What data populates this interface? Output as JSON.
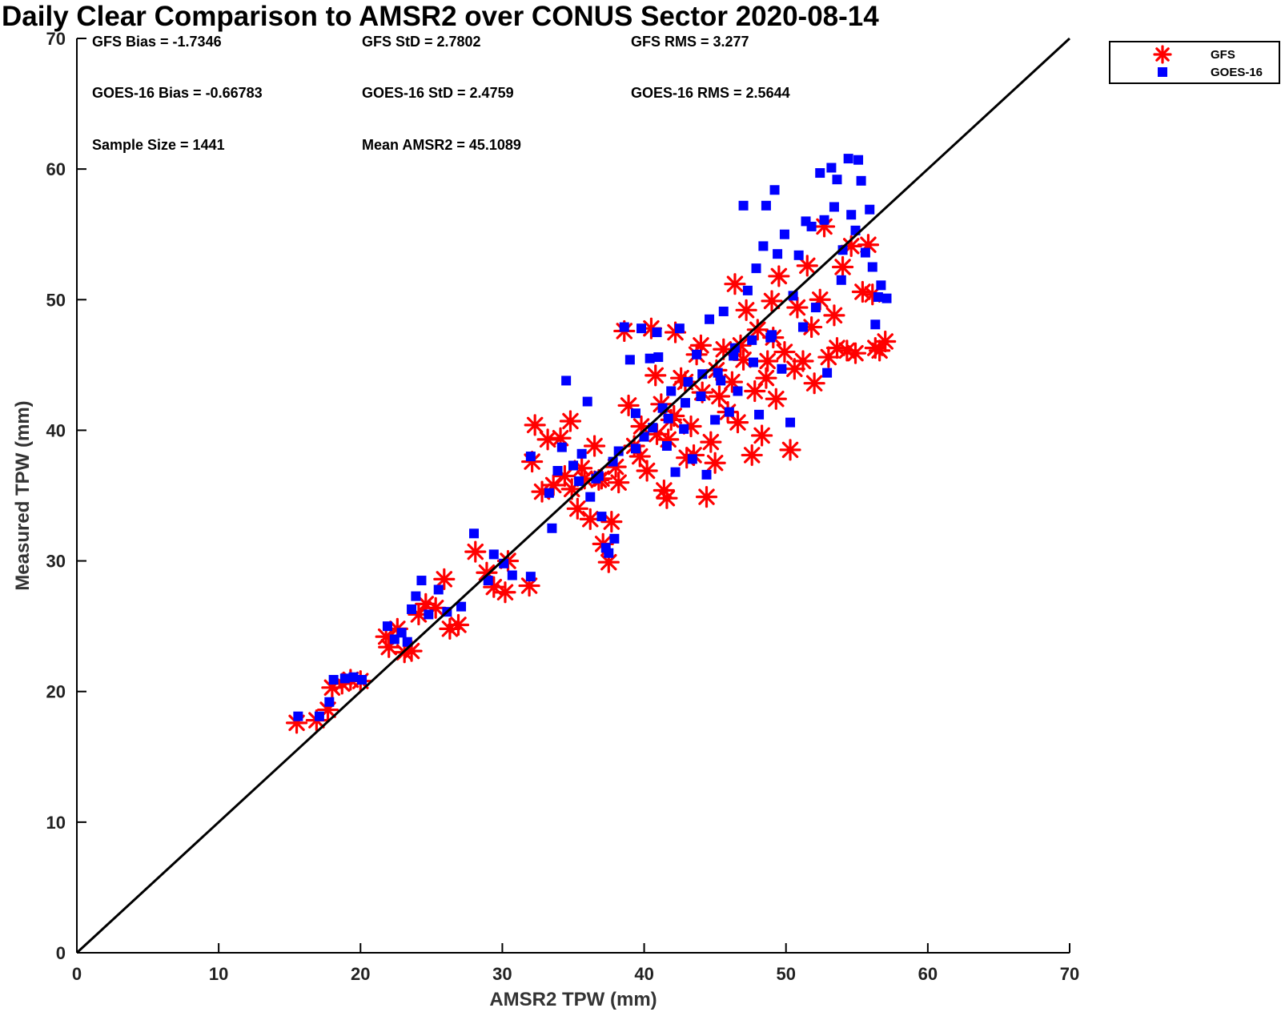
{
  "chart_data": {
    "type": "scatter",
    "title": "Daily Clear Comparison to AMSR2 over CONUS Sector 2020-08-14",
    "xlabel": "AMSR2 TPW (mm)",
    "ylabel": "Measured TPW (mm)",
    "xlim": [
      0,
      70
    ],
    "ylim": [
      0,
      70
    ],
    "xticks": [
      "0",
      "10",
      "20",
      "30",
      "40",
      "50",
      "60",
      "70"
    ],
    "yticks": [
      "0",
      "10",
      "20",
      "30",
      "40",
      "50",
      "60",
      "70"
    ],
    "grid": false,
    "legend_position": "outside-top-right",
    "reference_line": {
      "from": [
        0,
        0
      ],
      "to": [
        70,
        70
      ],
      "color": "#000000"
    },
    "stats": [
      "GFS Bias = -1.7346",
      "GFS StD = 2.7802",
      "GFS RMS = 3.277",
      "GOES-16 Bias = -0.66783",
      "GOES-16 StD = 2.4759",
      "GOES-16 RMS = 2.5644",
      "Sample Size = 1441",
      "Mean AMSR2 = 45.1089"
    ],
    "series": [
      {
        "name": "GFS",
        "marker": "asterisk",
        "color": "#ff0000",
        "points": [
          [
            15.5,
            17.6
          ],
          [
            16.9,
            17.8
          ],
          [
            17.7,
            18.6
          ],
          [
            18.0,
            20.3
          ],
          [
            18.7,
            20.6
          ],
          [
            19.3,
            20.9
          ],
          [
            20.0,
            20.8
          ],
          [
            21.8,
            24.2
          ],
          [
            22.0,
            23.4
          ],
          [
            22.6,
            24.8
          ],
          [
            23.1,
            23.0
          ],
          [
            23.6,
            23.1
          ],
          [
            24.1,
            25.9
          ],
          [
            24.6,
            26.7
          ],
          [
            25.3,
            26.4
          ],
          [
            25.9,
            28.6
          ],
          [
            26.3,
            24.8
          ],
          [
            26.9,
            25.1
          ],
          [
            28.1,
            30.7
          ],
          [
            28.9,
            29.1
          ],
          [
            29.4,
            28.0
          ],
          [
            30.2,
            27.6
          ],
          [
            30.4,
            30.0
          ],
          [
            31.9,
            28.1
          ],
          [
            32.1,
            37.6
          ],
          [
            32.3,
            40.4
          ],
          [
            32.8,
            35.3
          ],
          [
            33.2,
            39.3
          ],
          [
            33.6,
            35.8
          ],
          [
            34.1,
            39.4
          ],
          [
            34.4,
            36.5
          ],
          [
            34.8,
            40.7
          ],
          [
            34.9,
            35.5
          ],
          [
            35.3,
            34.0
          ],
          [
            35.6,
            37.1
          ],
          [
            36.2,
            33.2
          ],
          [
            36.5,
            38.8
          ],
          [
            37.0,
            36.3
          ],
          [
            37.1,
            31.3
          ],
          [
            37.5,
            29.9
          ],
          [
            37.7,
            33.0
          ],
          [
            38.2,
            36.0
          ],
          [
            38.6,
            47.6
          ],
          [
            38.9,
            41.9
          ],
          [
            39.3,
            38.8
          ],
          [
            39.8,
            40.3
          ],
          [
            40.2,
            36.9
          ],
          [
            40.5,
            47.8
          ],
          [
            40.8,
            44.2
          ],
          [
            41.2,
            42.0
          ],
          [
            41.4,
            35.4
          ],
          [
            41.7,
            39.3
          ],
          [
            41.6,
            34.8
          ],
          [
            42.1,
            41.1
          ],
          [
            42.2,
            47.5
          ],
          [
            42.6,
            44.0
          ],
          [
            43.0,
            37.9
          ],
          [
            43.3,
            40.3
          ],
          [
            43.5,
            38.1
          ],
          [
            43.7,
            45.8
          ],
          [
            44.1,
            42.9
          ],
          [
            44.4,
            34.9
          ],
          [
            44.7,
            39.1
          ],
          [
            45.0,
            37.5
          ],
          [
            45.1,
            44.6
          ],
          [
            45.6,
            46.2
          ],
          [
            45.9,
            41.4
          ],
          [
            46.2,
            43.7
          ],
          [
            46.4,
            51.2
          ],
          [
            46.6,
            40.6
          ],
          [
            47.0,
            45.4
          ],
          [
            47.2,
            49.2
          ],
          [
            47.6,
            38.1
          ],
          [
            47.8,
            43.0
          ],
          [
            48.0,
            47.7
          ],
          [
            48.3,
            39.6
          ],
          [
            48.7,
            45.3
          ],
          [
            49.0,
            49.9
          ],
          [
            49.3,
            42.4
          ],
          [
            49.5,
            51.8
          ],
          [
            49.9,
            46.0
          ],
          [
            50.3,
            38.5
          ],
          [
            50.6,
            44.7
          ],
          [
            50.8,
            49.4
          ],
          [
            51.2,
            45.3
          ],
          [
            51.5,
            52.6
          ],
          [
            51.8,
            47.9
          ],
          [
            52.0,
            43.6
          ],
          [
            52.4,
            50.0
          ],
          [
            52.7,
            55.6
          ],
          [
            53.0,
            45.6
          ],
          [
            53.4,
            48.8
          ],
          [
            53.6,
            46.3
          ],
          [
            54.0,
            52.5
          ],
          [
            54.3,
            46.1
          ],
          [
            54.6,
            54.1
          ],
          [
            54.9,
            45.9
          ],
          [
            55.4,
            50.6
          ],
          [
            55.8,
            54.2
          ],
          [
            56.1,
            50.4
          ],
          [
            56.3,
            46.3
          ],
          [
            56.6,
            46.1
          ],
          [
            57.0,
            46.8
          ],
          [
            49.1,
            47.1
          ],
          [
            48.6,
            44.0
          ],
          [
            46.8,
            46.5
          ],
          [
            45.3,
            42.6
          ],
          [
            44.0,
            46.5
          ],
          [
            42.9,
            43.7
          ],
          [
            41.9,
            40.8
          ],
          [
            40.9,
            39.7
          ],
          [
            39.7,
            38.0
          ],
          [
            38.0,
            37.2
          ],
          [
            36.8,
            36.2
          ],
          [
            35.8,
            36.3
          ]
        ]
      },
      {
        "name": "GOES-16",
        "marker": "square",
        "color": "#0000ff",
        "points": [
          [
            15.6,
            18.1
          ],
          [
            17.1,
            18.1
          ],
          [
            17.8,
            19.2
          ],
          [
            18.1,
            20.9
          ],
          [
            18.9,
            21.0
          ],
          [
            19.5,
            21.1
          ],
          [
            20.1,
            20.9
          ],
          [
            21.9,
            25.0
          ],
          [
            22.4,
            24.0
          ],
          [
            22.9,
            24.5
          ],
          [
            23.3,
            23.8
          ],
          [
            23.6,
            26.3
          ],
          [
            23.9,
            27.3
          ],
          [
            24.3,
            28.5
          ],
          [
            24.8,
            25.9
          ],
          [
            25.5,
            27.8
          ],
          [
            26.1,
            26.1
          ],
          [
            27.1,
            26.5
          ],
          [
            28.0,
            32.1
          ],
          [
            29.0,
            28.5
          ],
          [
            29.4,
            30.5
          ],
          [
            30.1,
            29.8
          ],
          [
            30.7,
            28.9
          ],
          [
            32.0,
            28.8
          ],
          [
            32.0,
            38.0
          ],
          [
            33.3,
            35.2
          ],
          [
            33.5,
            32.5
          ],
          [
            33.9,
            36.9
          ],
          [
            34.2,
            38.7
          ],
          [
            34.5,
            43.8
          ],
          [
            35.0,
            37.3
          ],
          [
            35.6,
            38.2
          ],
          [
            36.0,
            42.2
          ],
          [
            36.2,
            34.9
          ],
          [
            36.8,
            36.5
          ],
          [
            37.0,
            33.4
          ],
          [
            37.3,
            31.0
          ],
          [
            37.5,
            30.6
          ],
          [
            37.9,
            31.7
          ],
          [
            38.2,
            38.4
          ],
          [
            38.6,
            47.9
          ],
          [
            39.0,
            45.4
          ],
          [
            39.4,
            41.3
          ],
          [
            39.8,
            47.8
          ],
          [
            40.0,
            39.5
          ],
          [
            40.4,
            45.5
          ],
          [
            40.9,
            47.5
          ],
          [
            41.0,
            45.6
          ],
          [
            41.3,
            41.7
          ],
          [
            41.6,
            38.8
          ],
          [
            41.9,
            43.0
          ],
          [
            42.2,
            36.8
          ],
          [
            42.5,
            47.8
          ],
          [
            42.8,
            40.1
          ],
          [
            43.1,
            43.7
          ],
          [
            43.4,
            37.8
          ],
          [
            43.7,
            45.8
          ],
          [
            44.0,
            42.6
          ],
          [
            44.4,
            36.6
          ],
          [
            44.6,
            48.5
          ],
          [
            45.0,
            40.8
          ],
          [
            45.2,
            44.4
          ],
          [
            45.6,
            49.1
          ],
          [
            46.0,
            41.4
          ],
          [
            46.3,
            45.7
          ],
          [
            46.6,
            43.0
          ],
          [
            47.0,
            57.2
          ],
          [
            47.3,
            50.7
          ],
          [
            47.6,
            46.9
          ],
          [
            47.9,
            52.4
          ],
          [
            48.1,
            41.2
          ],
          [
            48.4,
            54.1
          ],
          [
            48.6,
            57.2
          ],
          [
            48.9,
            47.1
          ],
          [
            49.2,
            58.4
          ],
          [
            49.4,
            53.5
          ],
          [
            49.7,
            44.7
          ],
          [
            49.9,
            55.0
          ],
          [
            50.3,
            40.6
          ],
          [
            50.5,
            50.3
          ],
          [
            50.9,
            53.4
          ],
          [
            51.2,
            47.9
          ],
          [
            51.4,
            56.0
          ],
          [
            51.8,
            55.6
          ],
          [
            52.1,
            49.4
          ],
          [
            52.4,
            59.7
          ],
          [
            52.7,
            56.1
          ],
          [
            52.9,
            44.4
          ],
          [
            53.2,
            60.1
          ],
          [
            53.4,
            57.1
          ],
          [
            53.6,
            59.2
          ],
          [
            53.9,
            51.5
          ],
          [
            54.0,
            53.8
          ],
          [
            54.4,
            60.8
          ],
          [
            54.6,
            56.5
          ],
          [
            54.9,
            55.3
          ],
          [
            55.1,
            60.7
          ],
          [
            55.3,
            59.1
          ],
          [
            55.6,
            53.6
          ],
          [
            55.9,
            56.9
          ],
          [
            56.1,
            52.5
          ],
          [
            56.3,
            48.1
          ],
          [
            56.5,
            50.2
          ],
          [
            56.7,
            51.1
          ],
          [
            57.1,
            50.1
          ],
          [
            49.0,
            47.3
          ],
          [
            47.7,
            45.2
          ],
          [
            46.4,
            46.3
          ],
          [
            45.4,
            43.8
          ],
          [
            44.1,
            44.3
          ],
          [
            42.9,
            42.1
          ],
          [
            41.7,
            40.9
          ],
          [
            40.6,
            40.2
          ],
          [
            39.4,
            38.6
          ],
          [
            37.8,
            37.6
          ],
          [
            36.6,
            36.3
          ],
          [
            35.4,
            36.1
          ]
        ]
      }
    ]
  }
}
